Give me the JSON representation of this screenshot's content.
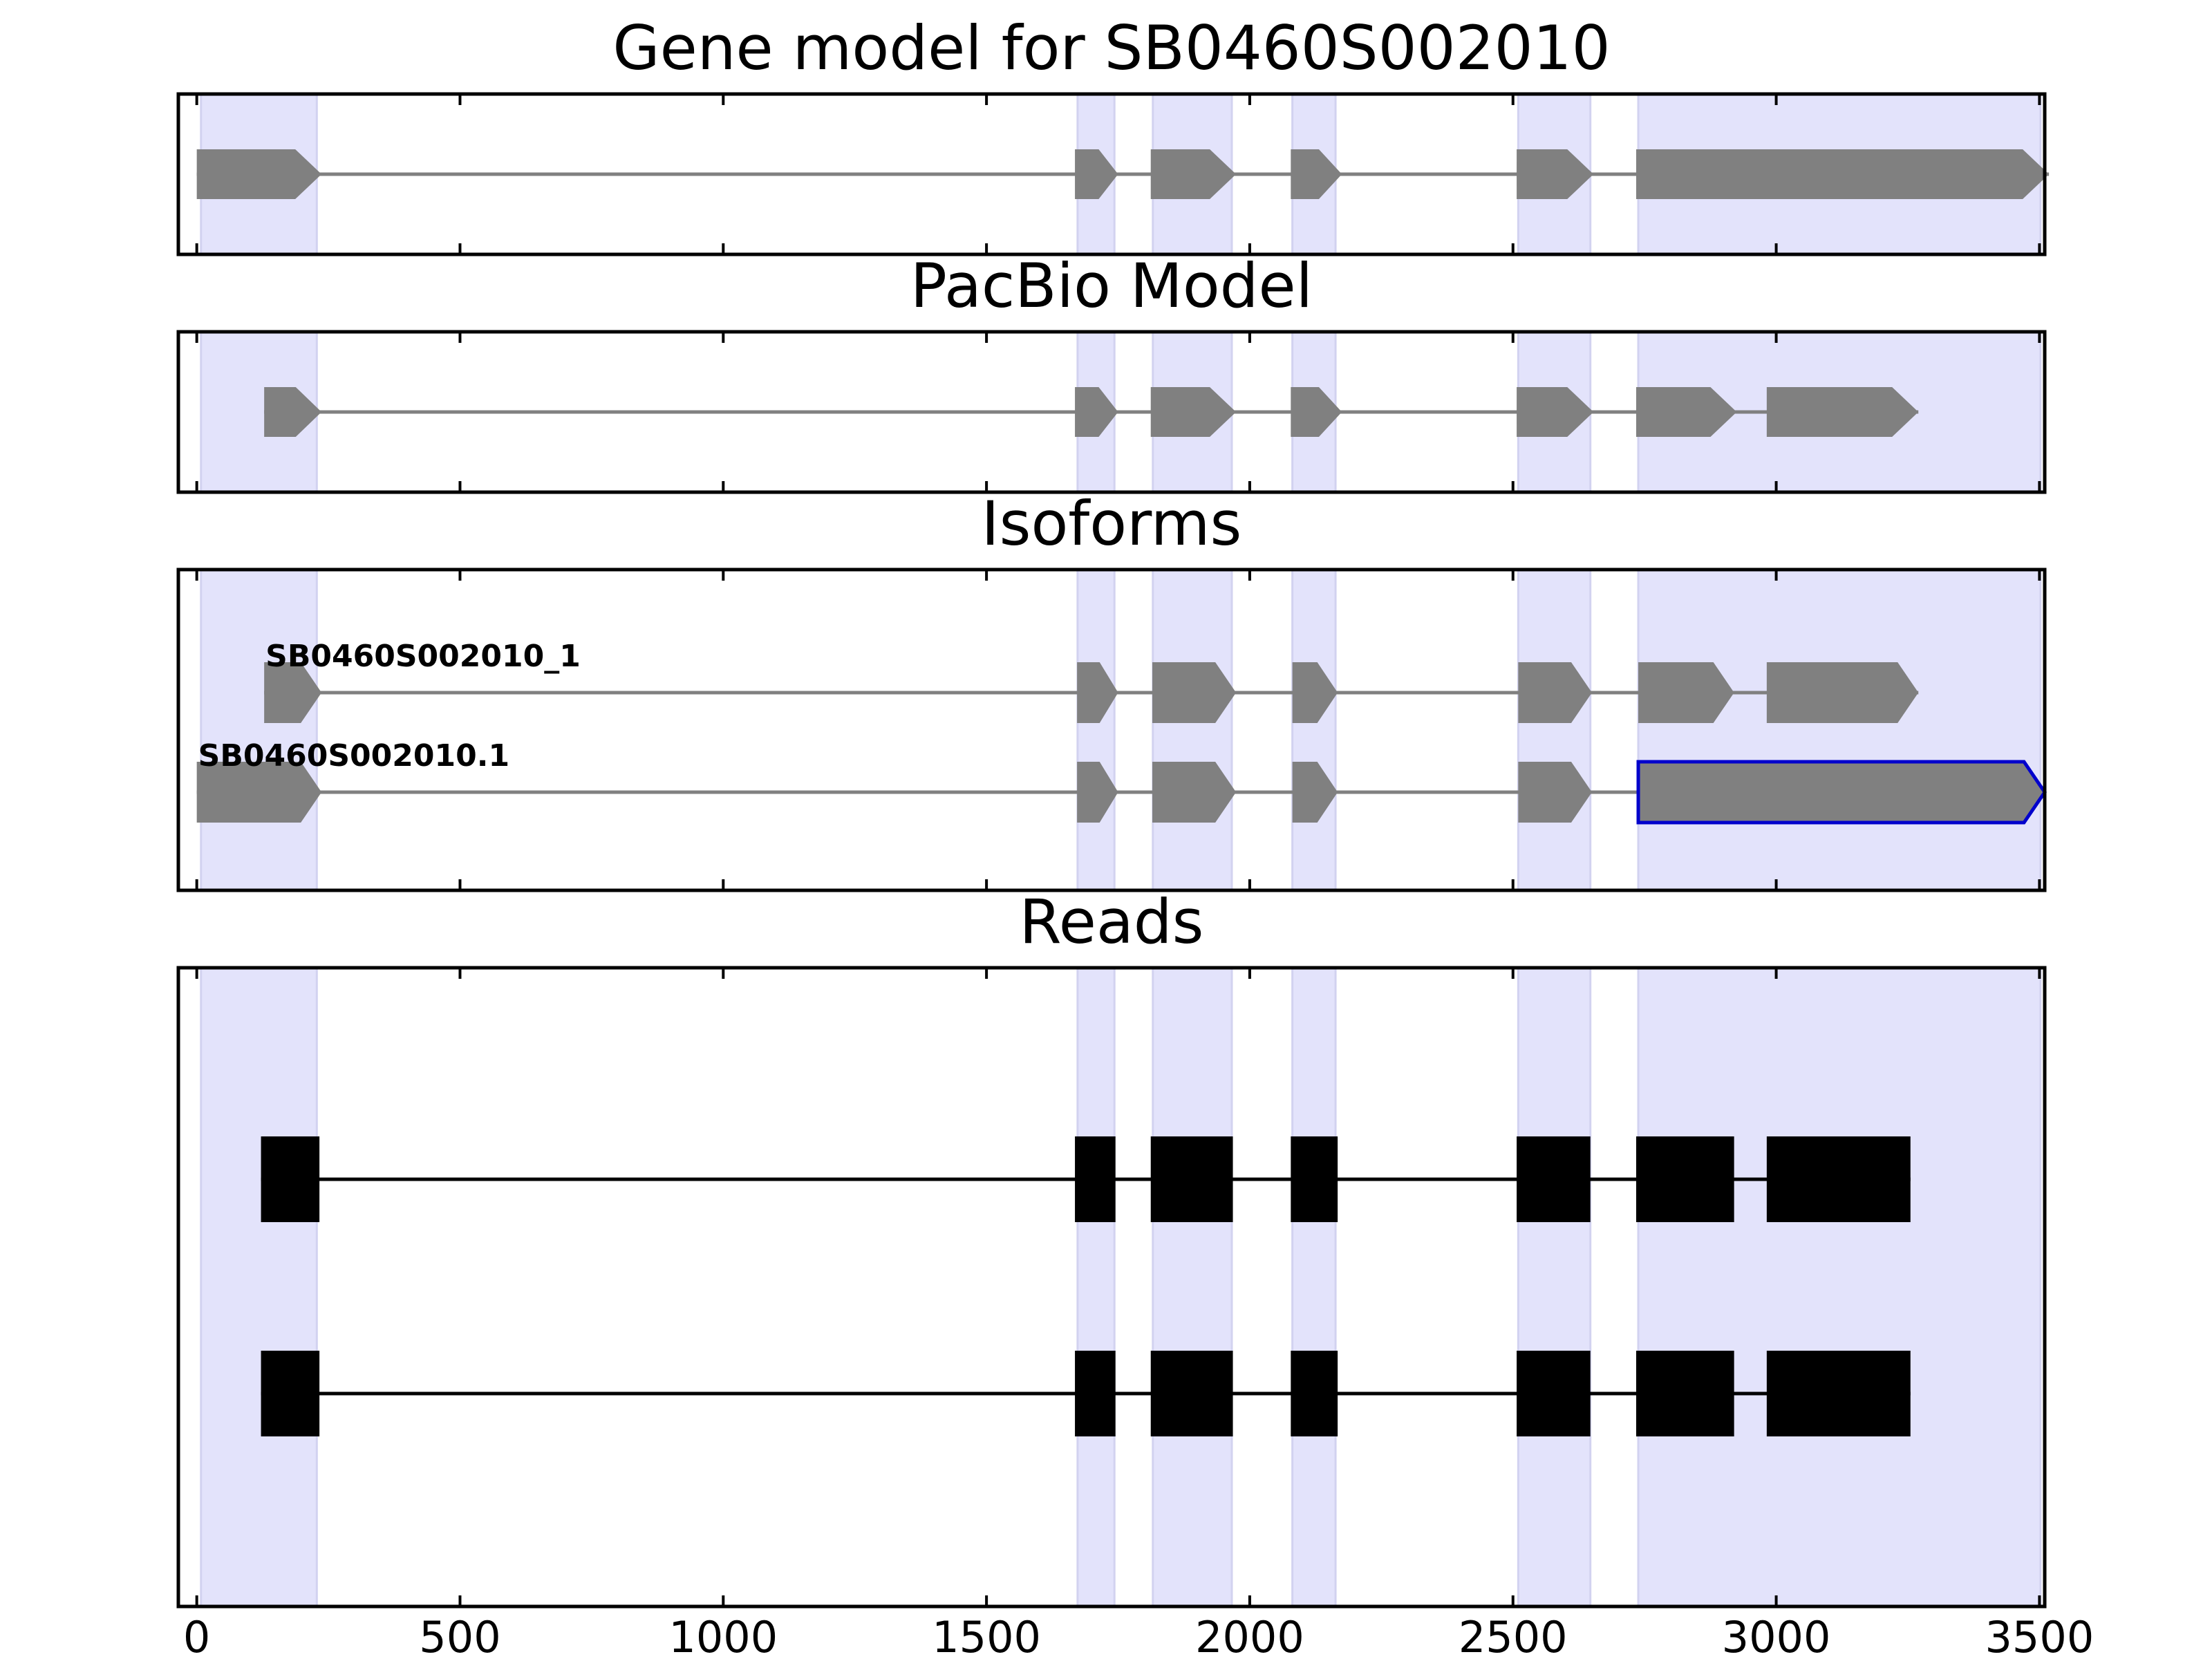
{
  "colors": {
    "exon_region": "#e3e3fb",
    "exon_region_edge": "#d2d2f0",
    "feature_fill": "#808080",
    "intron_line": "#808080",
    "read_fill": "#000000",
    "highlight_edge": "#0000cc",
    "axes": "#000000"
  },
  "chart_data": {
    "type": "gene-model tracks",
    "xlim": [
      -35,
      3510
    ],
    "x_ticks": [
      0,
      500,
      1000,
      1500,
      2000,
      2500,
      3000,
      3500
    ],
    "x_tick_labels": [
      "0",
      "500",
      "1000",
      "1500",
      "2000",
      "2500",
      "3000",
      "3500"
    ],
    "exon_regions": [
      [
        8,
        228
      ],
      [
        1673,
        1743
      ],
      [
        1816,
        1966
      ],
      [
        2081,
        2163
      ],
      [
        2510,
        2647
      ],
      [
        2738,
        3502
      ]
    ],
    "panels": [
      {
        "title": "Gene model for SB0460S002010",
        "kind": "gene",
        "tracks": [
          {
            "label": "",
            "exons": [
              [
                0,
                237
              ],
              [
                1668,
                1750
              ],
              [
                1812,
                1974
              ],
              [
                2078,
                2175
              ],
              [
                2507,
                2653
              ],
              [
                2734,
                3518
              ]
            ],
            "highlight_last": false
          }
        ]
      },
      {
        "title": "PacBio Model",
        "kind": "gene",
        "tracks": [
          {
            "label": "",
            "exons": [
              [
                128,
                237
              ],
              [
                1668,
                1750
              ],
              [
                1812,
                1974
              ],
              [
                2078,
                2175
              ],
              [
                2507,
                2653
              ],
              [
                2734,
                2925
              ],
              [
                2982,
                3270
              ]
            ],
            "highlight_last": false
          }
        ]
      },
      {
        "title": "Isoforms",
        "kind": "gene",
        "tracks": [
          {
            "label": "SB0460S002010_1",
            "exons": [
              [
                128,
                237
              ],
              [
                1672,
                1750
              ],
              [
                1815,
                1974
              ],
              [
                2081,
                2167
              ],
              [
                2510,
                2650
              ],
              [
                2738,
                2920
              ],
              [
                2982,
                3270
              ]
            ],
            "highlight_last": false
          },
          {
            "label": "SB0460S002010.1",
            "exons": [
              [
                0,
                237
              ],
              [
                1672,
                1750
              ],
              [
                1815,
                1974
              ],
              [
                2081,
                2167
              ],
              [
                2510,
                2650
              ],
              [
                2738,
                3510
              ]
            ],
            "highlight_last": true
          }
        ]
      },
      {
        "title": "Reads",
        "kind": "reads",
        "tracks": [
          {
            "label": "",
            "exons": [
              [
                122,
                233
              ],
              [
                1668,
                1745
              ],
              [
                1812,
                1968
              ],
              [
                2078,
                2167
              ],
              [
                2507,
                2647
              ],
              [
                2734,
                2920
              ],
              [
                2982,
                3255
              ]
            ],
            "highlight_last": false
          },
          {
            "label": "",
            "exons": [
              [
                122,
                233
              ],
              [
                1668,
                1745
              ],
              [
                1812,
                1968
              ],
              [
                2078,
                2167
              ],
              [
                2507,
                2647
              ],
              [
                2734,
                2920
              ],
              [
                2982,
                3255
              ]
            ],
            "highlight_last": false
          }
        ]
      }
    ]
  }
}
